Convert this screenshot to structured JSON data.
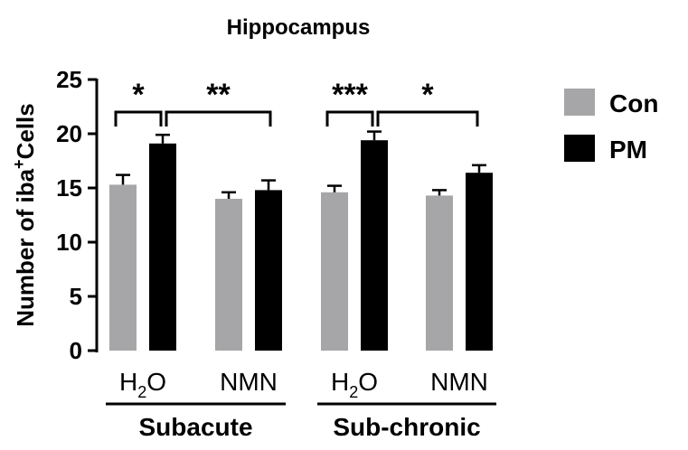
{
  "chart_data": {
    "type": "bar",
    "title": "Hippocampus",
    "ylabel_prefix": "Number of iba",
    "ylabel_sup": "+",
    "ylabel_suffix": "Cells",
    "ylim": [
      0,
      25
    ],
    "yticks": [
      "0",
      "5",
      "10",
      "15",
      "20",
      "25"
    ],
    "categories": [
      "H2O",
      "NMN",
      "H2O",
      "NMN"
    ],
    "groups": [
      "Subacute",
      "Sub-chronic"
    ],
    "series": [
      {
        "name": "Con",
        "color": "#a6a6a8",
        "values": [
          15.3,
          14.0,
          14.6,
          14.3
        ],
        "errors": [
          0.9,
          0.6,
          0.6,
          0.5
        ]
      },
      {
        "name": "PM",
        "color": "#000000",
        "values": [
          19.1,
          14.8,
          19.4,
          16.4
        ],
        "errors": [
          0.8,
          0.9,
          0.8,
          0.7
        ]
      }
    ],
    "significance": [
      {
        "label": "*",
        "between": "Subacute H2O Con vs PM"
      },
      {
        "label": "**",
        "between": "Subacute PM H2O vs NMN"
      },
      {
        "label": "***",
        "between": "Sub-chronic H2O Con vs PM"
      },
      {
        "label": "*",
        "between": "Sub-chronic PM H2O vs NMN"
      }
    ],
    "legend_position": "right",
    "grid": false
  }
}
